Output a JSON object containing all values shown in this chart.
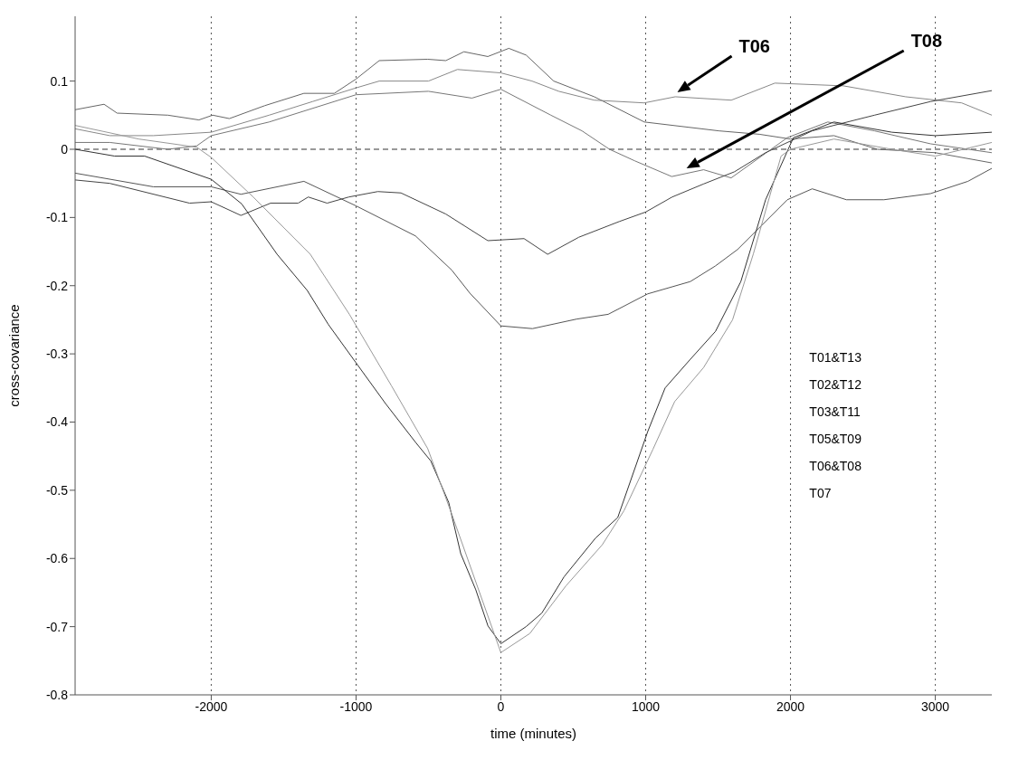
{
  "chart_data": {
    "type": "line",
    "xlabel": "time (minutes)",
    "ylabel": "cross-covariance",
    "xlim": [
      -2940,
      3390
    ],
    "ylim": [
      -0.8,
      0.195
    ],
    "xticks": [
      -2000,
      -1000,
      0,
      1000,
      2000,
      3000
    ],
    "yticks": [
      -0.8,
      -0.7,
      -0.6,
      -0.5,
      -0.4,
      -0.3,
      -0.2,
      -0.1,
      0,
      0.1
    ],
    "grid": "x",
    "ref_lines": [
      {
        "axis": "y",
        "value": 0,
        "line_style": "dashed",
        "color": "#333333"
      }
    ],
    "annotations": [
      "T06",
      "T08",
      "T01&T13",
      "T02&T12",
      "T03&T11",
      "T05&T09",
      "T06&T08",
      "T07"
    ],
    "series": [
      {
        "color": "#666666",
        "x": [
          -2940,
          -2740,
          -2650,
          -2300,
          -2085,
          -1990,
          -1875,
          -1630,
          -1360,
          -1150,
          -1000,
          -840,
          -505,
          -380,
          -255,
          -90,
          55,
          175,
          365,
          645,
          990,
          1505,
          1785,
          2000,
          2300,
          2600,
          3000,
          3390
        ],
        "values": [
          0.058,
          0.066,
          0.053,
          0.05,
          0.043,
          0.05,
          0.045,
          0.064,
          0.082,
          0.082,
          0.103,
          0.13,
          0.132,
          0.13,
          0.143,
          0.136,
          0.148,
          0.138,
          0.1,
          0.077,
          0.04,
          0.027,
          0.022,
          0.015,
          0.02,
          0,
          -0.005,
          -0.02
        ]
      },
      {
        "color": "#888888",
        "x": [
          -2940,
          -2700,
          -2400,
          -2000,
          -1600,
          -1300,
          -1000,
          -840,
          -500,
          -300,
          0,
          215,
          400,
          645,
          990,
          1204,
          1591,
          1892,
          2365,
          2795,
          3182,
          3390
        ],
        "values": [
          0.03,
          0.02,
          0.02,
          0.025,
          0.05,
          0.07,
          0.09,
          0.1,
          0.1,
          0.117,
          0.112,
          0.1,
          0.085,
          0.072,
          0.068,
          0.077,
          0.072,
          0.097,
          0.093,
          0.077,
          0.068,
          0.05
        ]
      },
      {
        "color": "#777777",
        "x": [
          -2940,
          -2700,
          -2300,
          -2100,
          -2000,
          -1600,
          -1000,
          -500,
          -200,
          0,
          345,
          560,
          750,
          925,
          1180,
          1400,
          1590,
          1978,
          2257,
          2580,
          2967,
          3390
        ],
        "values": [
          0.01,
          0.01,
          0,
          0.005,
          0.02,
          0.04,
          0.08,
          0.085,
          0.075,
          0.088,
          0.05,
          0.027,
          0,
          -0.017,
          -0.04,
          -0.03,
          -0.042,
          0.017,
          0.04,
          0.027,
          0.008,
          -0.005
        ]
      },
      {
        "color": "#555555",
        "x": [
          -2940,
          -2400,
          -2000,
          -1795,
          -1360,
          -1000,
          -590,
          -340,
          -214,
          0,
          218,
          523,
          741,
          1014,
          1308,
          1482,
          1634,
          1978,
          2150,
          2386,
          2645,
          2967,
          3225,
          3390
        ],
        "values": [
          -0.035,
          -0.055,
          -0.055,
          -0.066,
          -0.047,
          -0.083,
          -0.127,
          -0.177,
          -0.211,
          -0.259,
          -0.263,
          -0.249,
          -0.242,
          -0.212,
          -0.194,
          -0.171,
          -0.147,
          -0.074,
          -0.058,
          -0.074,
          -0.074,
          -0.065,
          -0.047,
          -0.028
        ]
      },
      {
        "color": "#444444",
        "x": [
          -2940,
          -2700,
          -2150,
          -2000,
          -1795,
          -1590,
          -1400,
          -1330,
          -1200,
          -1050,
          -850,
          -690,
          -380,
          -90,
          160,
          323,
          538,
          817,
          1000,
          1183,
          1398,
          1613,
          1828,
          2150,
          2580,
          2967,
          3390
        ],
        "values": [
          -0.045,
          -0.05,
          -0.079,
          -0.077,
          -0.097,
          -0.079,
          -0.079,
          -0.07,
          -0.079,
          -0.07,
          -0.062,
          -0.064,
          -0.095,
          -0.134,
          -0.131,
          -0.154,
          -0.129,
          -0.106,
          -0.092,
          -0.07,
          -0.051,
          -0.033,
          -0.005,
          0.027,
          0.05,
          0.07,
          0.086
        ]
      },
      {
        "color": "#333333",
        "x": [
          -2940,
          -2667,
          -2460,
          -2000,
          -1790,
          -1545,
          -1337,
          -1191,
          -1004,
          -796,
          -588,
          -484,
          -360,
          -277,
          -173,
          -89,
          0,
          174,
          283,
          436,
          654,
          807,
          1014,
          1134,
          1308,
          1482,
          1657,
          1828,
          2020,
          2300,
          2700,
          3000,
          3390
        ],
        "values": [
          0,
          -0.01,
          -0.01,
          -0.044,
          -0.08,
          -0.154,
          -0.207,
          -0.257,
          -0.312,
          -0.373,
          -0.43,
          -0.457,
          -0.518,
          -0.593,
          -0.646,
          -0.699,
          -0.725,
          -0.7,
          -0.68,
          -0.627,
          -0.57,
          -0.54,
          -0.414,
          -0.35,
          -0.308,
          -0.267,
          -0.194,
          -0.074,
          0.017,
          0.04,
          0.025,
          0.02,
          0.025
        ]
      },
      {
        "color": "#999999",
        "x": [
          -2940,
          -2500,
          -2100,
          -2000,
          -1710,
          -1316,
          -1046,
          -755,
          -505,
          -339,
          0,
          200,
          450,
          700,
          850,
          1050,
          1200,
          1400,
          1600,
          1744,
          1935,
          2000,
          2300,
          2700,
          3000,
          3390
        ],
        "values": [
          0.035,
          0.015,
          0.003,
          -0.012,
          -0.07,
          -0.154,
          -0.242,
          -0.347,
          -0.439,
          -0.535,
          -0.738,
          -0.71,
          -0.64,
          -0.58,
          -0.53,
          -0.44,
          -0.37,
          -0.32,
          -0.25,
          -0.153,
          -0.01,
          0,
          0.015,
          0,
          -0.01,
          0.01
        ]
      }
    ]
  }
}
